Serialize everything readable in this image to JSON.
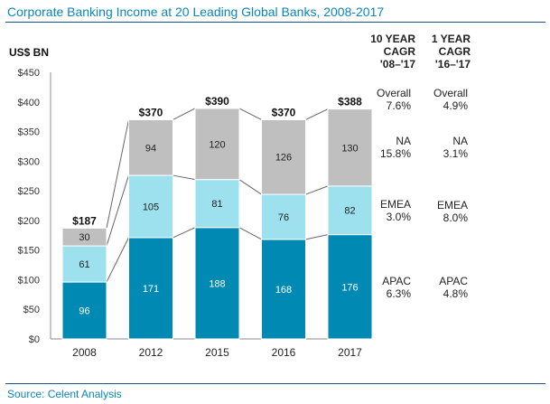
{
  "title": "Corporate Banking Income at 20 Leading Global Banks, 2008-2017",
  "source": "Source: Celent Analysis",
  "chart_data": {
    "type": "bar",
    "stacked": true,
    "ylabel": "US$ BN",
    "ylim": [
      0,
      450
    ],
    "yticks": [
      "$0",
      "$50",
      "$100",
      "$150",
      "$200",
      "$250",
      "$300",
      "$350",
      "$400",
      "$450"
    ],
    "categories": [
      "2008",
      "2012",
      "2015",
      "2016",
      "2017"
    ],
    "series": [
      {
        "key": "APAC",
        "values": [
          96,
          171,
          188,
          168,
          176
        ],
        "color": "#0089b3",
        "label_color": "#ffffff"
      },
      {
        "key": "EMEA",
        "values": [
          61,
          105,
          81,
          76,
          82
        ],
        "color": "#9de0ee",
        "label_color": "#222222"
      },
      {
        "key": "NA",
        "values": [
          30,
          94,
          120,
          126,
          130
        ],
        "color": "#bfbfbf",
        "label_color": "#222222"
      }
    ],
    "totals": [
      "$187",
      "$370",
      "$390",
      "$370",
      "$388"
    ],
    "grid": false,
    "connectors": true
  },
  "cagr": {
    "columns": [
      {
        "header": [
          "10 YEAR",
          "CAGR",
          "'08–'17"
        ],
        "rows": [
          [
            "Overall",
            "7.6%"
          ],
          [
            "NA",
            "15.8%"
          ],
          [
            "EMEA",
            "3.0%"
          ],
          [
            "APAC",
            "6.3%"
          ]
        ]
      },
      {
        "header": [
          "1 YEAR",
          "CAGR",
          "'16–'17"
        ],
        "rows": [
          [
            "Overall",
            "4.9%"
          ],
          [
            "NA",
            "3.1%"
          ],
          [
            "EMEA",
            "8.0%"
          ],
          [
            "APAC",
            "4.8%"
          ]
        ]
      }
    ]
  }
}
